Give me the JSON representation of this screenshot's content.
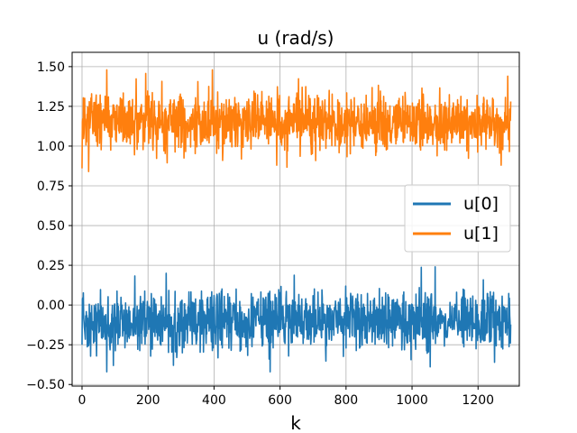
{
  "chart_data": {
    "type": "line",
    "title": "u (rad/s)",
    "xlabel": "k",
    "ylabel": "",
    "xlim": [
      -30,
      1325
    ],
    "ylim": [
      -0.51,
      1.59
    ],
    "x_ticks": [
      0,
      200,
      400,
      600,
      800,
      1000,
      1200
    ],
    "x_tick_labels": [
      "0",
      "200",
      "400",
      "600",
      "800",
      "1000",
      "1200"
    ],
    "y_ticks": [
      -0.5,
      -0.25,
      0.0,
      0.25,
      0.5,
      0.75,
      1.0,
      1.25,
      1.5
    ],
    "y_tick_labels": [
      "−0.50",
      "−0.25",
      "0.00",
      "0.25",
      "0.50",
      "0.75",
      "1.00",
      "1.25",
      "1.50"
    ],
    "grid": true,
    "legend_position": "center-right",
    "series": [
      {
        "name": "u[0]",
        "color": "#1f77b4",
        "n_points": 1300,
        "mean": -0.1,
        "spread": 0.09,
        "min": -0.42,
        "max": 0.24,
        "features": [
          [
            0,
            -0.25
          ],
          [
            75,
            -0.42
          ],
          [
            95,
            -0.38
          ],
          [
            255,
            0.2
          ],
          [
            570,
            -0.42
          ],
          [
            1070,
            0.24
          ],
          [
            1250,
            -0.36
          ]
        ]
      },
      {
        "name": "u[1]",
        "color": "#ff7f0e",
        "n_points": 1300,
        "mean": 1.15,
        "spread": 0.09,
        "min": 0.84,
        "max": 1.48,
        "features": [
          [
            0,
            0.86
          ],
          [
            20,
            0.84
          ],
          [
            75,
            1.48
          ],
          [
            395,
            1.48
          ],
          [
            590,
            0.88
          ],
          [
            1270,
            0.88
          ],
          [
            1290,
            1.44
          ]
        ]
      }
    ]
  }
}
